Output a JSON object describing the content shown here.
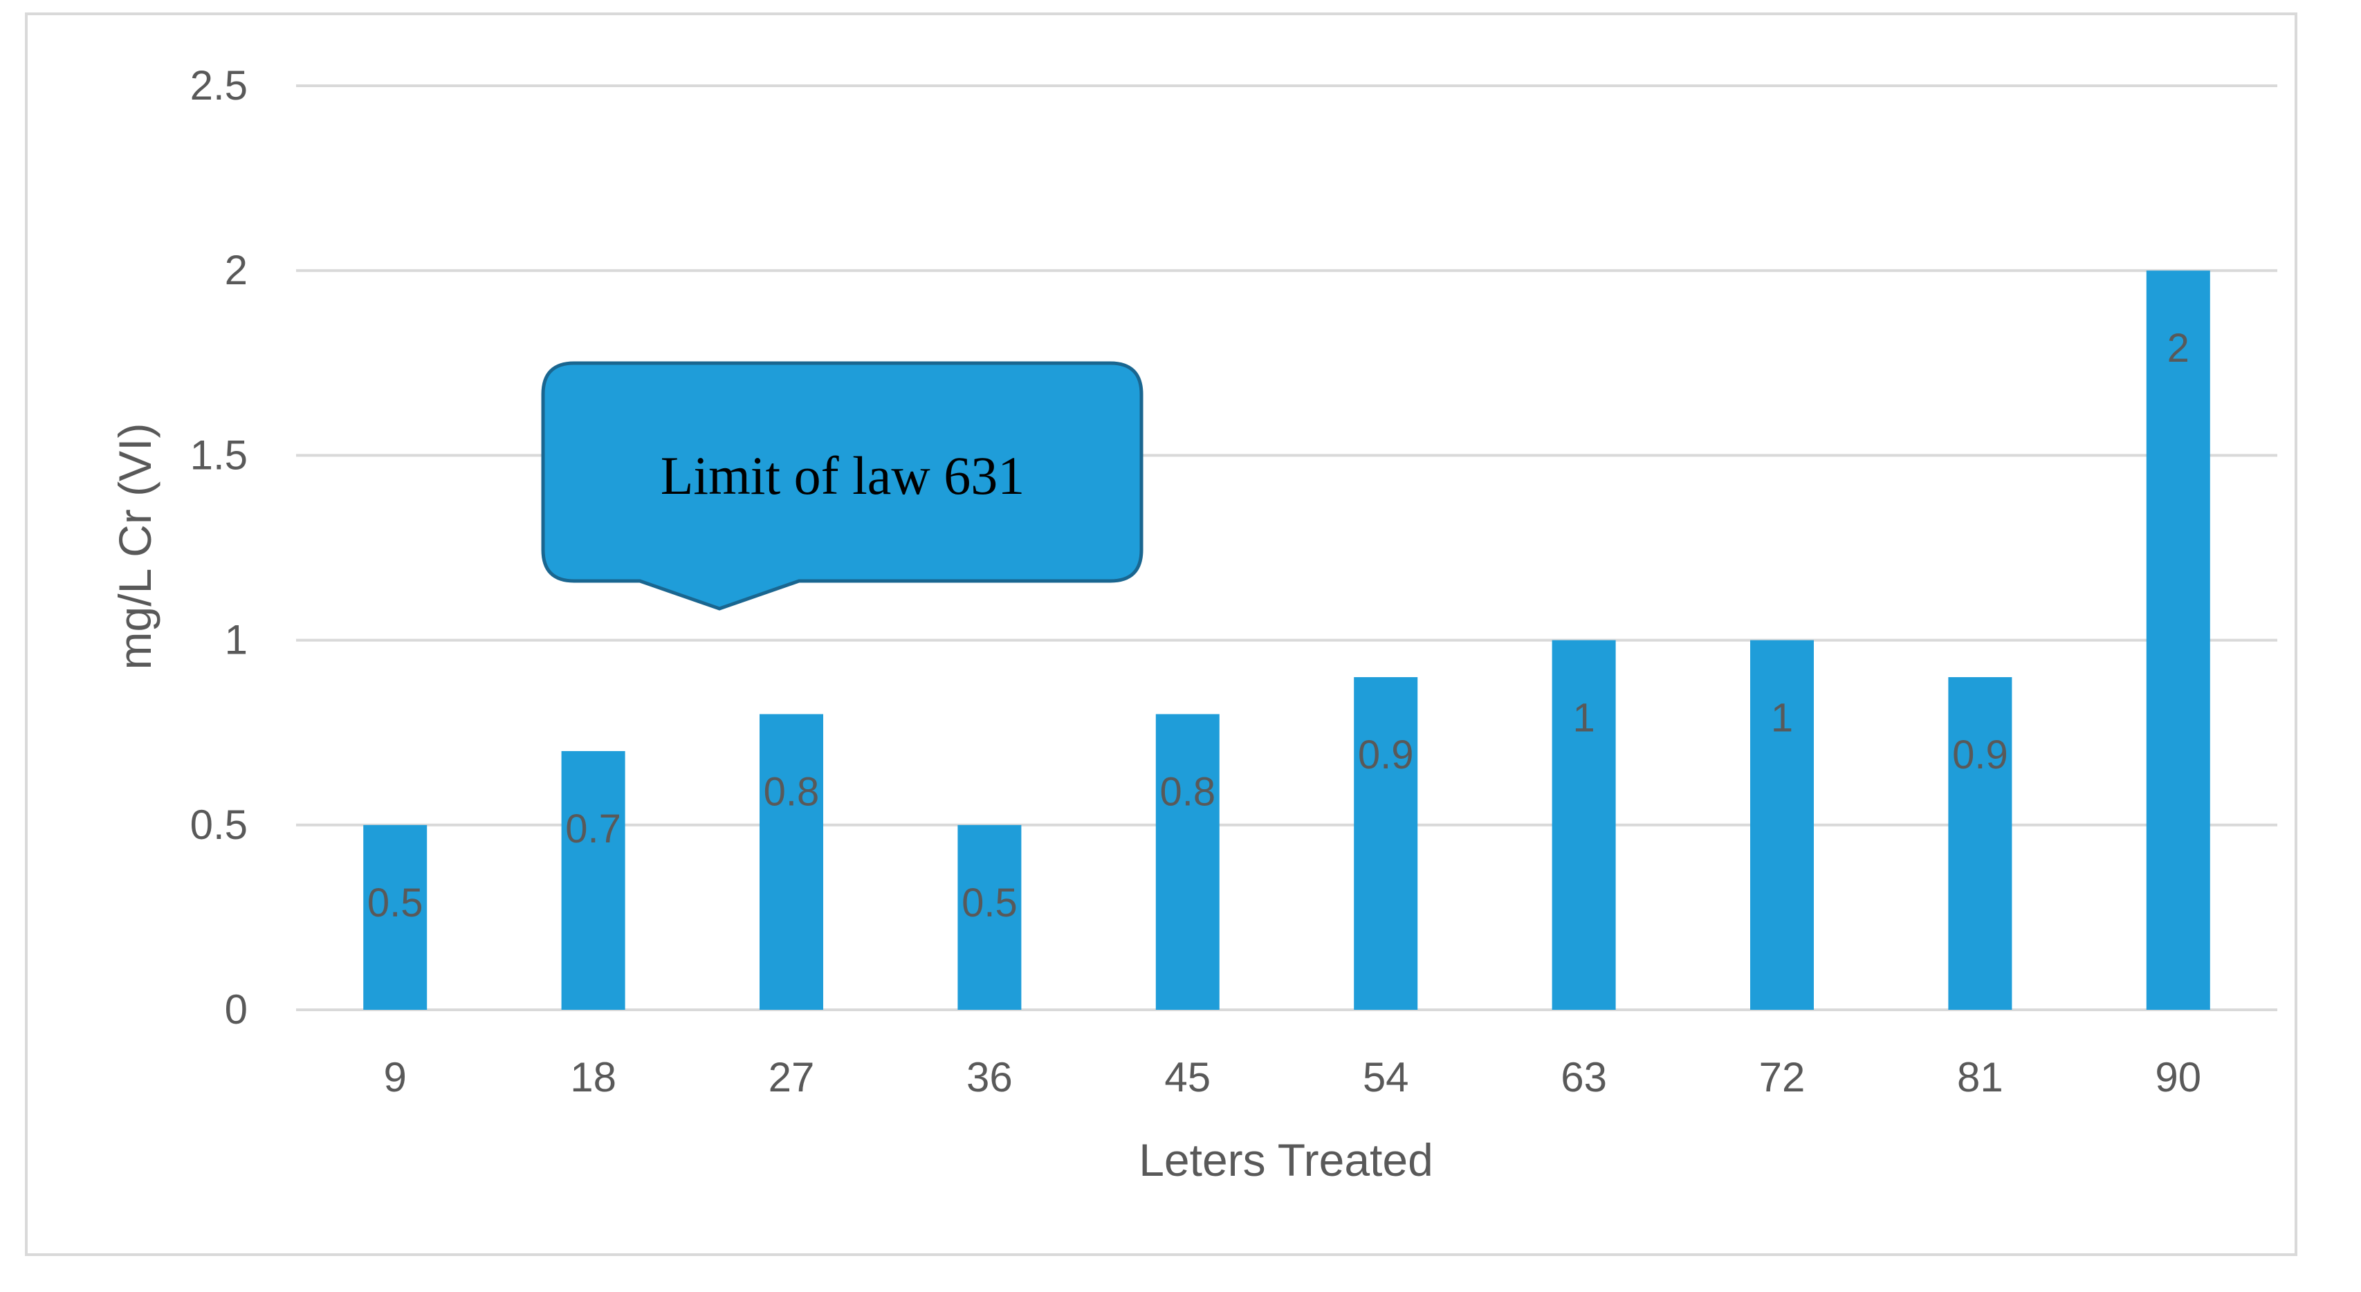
{
  "chart_data": {
    "type": "bar",
    "categories": [
      "9",
      "18",
      "27",
      "36",
      "45",
      "54",
      "63",
      "72",
      "81",
      "90"
    ],
    "values": [
      0.5,
      0.7,
      0.8,
      0.5,
      0.8,
      0.9,
      1,
      1,
      0.9,
      2
    ],
    "data_labels": [
      "0.5",
      "0.7",
      "0.8",
      "0.5",
      "0.8",
      "0.9",
      "1",
      "1",
      "0.9",
      "2"
    ],
    "y_ticks": [
      "0",
      "0.5",
      "1",
      "1.5",
      "2",
      "2.5"
    ],
    "y_tick_values": [
      0,
      0.5,
      1,
      1.5,
      2,
      2.5
    ],
    "ylim": [
      0,
      2.5
    ],
    "xlabel": "Leters Treated",
    "ylabel": "mg/L Cr (VI)",
    "grid": true,
    "bar_color": "#1f9dd9",
    "grid_color": "#d9d9d9",
    "annotation": {
      "text": "Limit of law 631",
      "fill": "#1f9dd9",
      "stroke": "#1a6690"
    }
  }
}
